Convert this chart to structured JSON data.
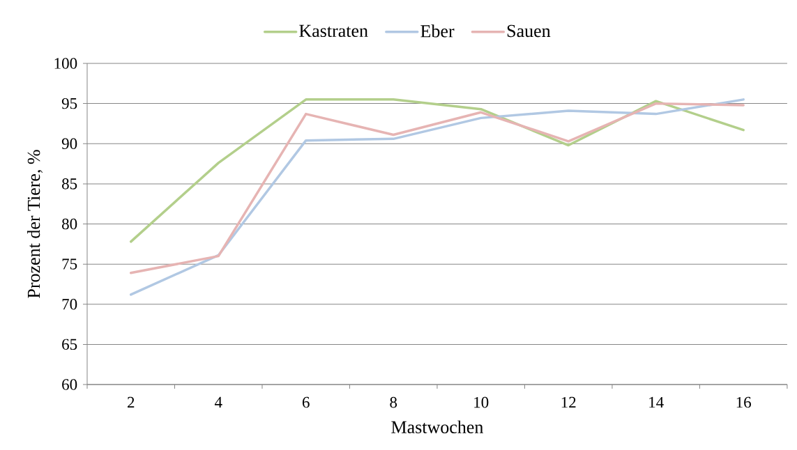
{
  "chart_data": {
    "type": "line",
    "xlabel": "Mastwochen",
    "ylabel": "Prozent der Tiere, %",
    "categories": [
      "2",
      "4",
      "6",
      "8",
      "10",
      "12",
      "14",
      "16"
    ],
    "series": [
      {
        "name": "Kastraten",
        "color": "#b3cf8b",
        "values": [
          77.8,
          87.6,
          95.5,
          95.5,
          94.3,
          89.8,
          95.3,
          91.7
        ]
      },
      {
        "name": "Eber",
        "color": "#b1c8e3",
        "values": [
          71.2,
          76.1,
          90.4,
          90.6,
          93.2,
          94.1,
          93.7,
          95.5
        ]
      },
      {
        "name": "Sauen",
        "color": "#e6b4b3",
        "values": [
          73.9,
          76.0,
          93.7,
          91.1,
          93.9,
          90.3,
          95.0,
          94.8
        ]
      }
    ],
    "ylim": [
      60,
      100
    ],
    "yticks": [
      60,
      65,
      70,
      75,
      80,
      85,
      90,
      95,
      100
    ],
    "grid": "y",
    "legend": "top",
    "line_style": "solid"
  }
}
